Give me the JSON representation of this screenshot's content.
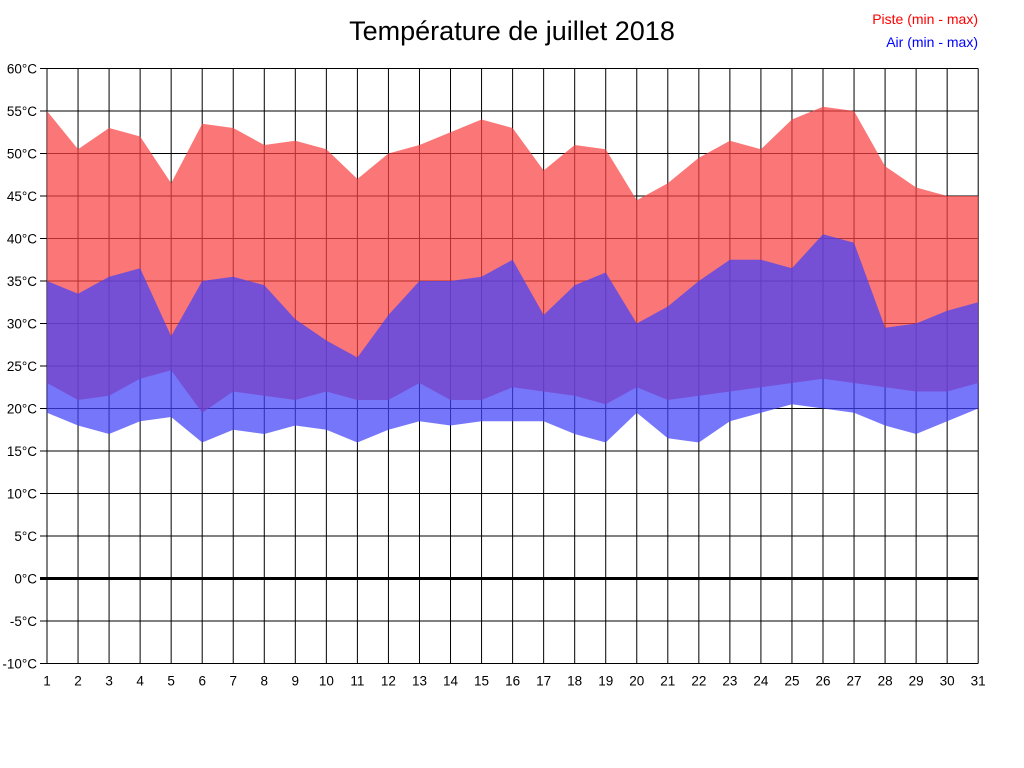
{
  "title": "Température de juillet 2018",
  "legend": [
    {
      "label": "Piste (min - max)",
      "color": "#ff0000"
    },
    {
      "label": "Air (min - max)",
      "color": "#0000ff"
    }
  ],
  "chart_data": {
    "type": "area",
    "title": "Température de juillet 2018",
    "xlabel": "",
    "ylabel": "",
    "x": [
      1,
      2,
      3,
      4,
      5,
      6,
      7,
      8,
      9,
      10,
      11,
      12,
      13,
      14,
      15,
      16,
      17,
      18,
      19,
      20,
      21,
      22,
      23,
      24,
      25,
      26,
      27,
      28,
      29,
      30,
      31
    ],
    "x_labels": [
      "1",
      "2",
      "3",
      "4",
      "5",
      "6",
      "7",
      "8",
      "9",
      "10",
      "11",
      "12",
      "13",
      "14",
      "15",
      "16",
      "17",
      "18",
      "19",
      "20",
      "21",
      "22",
      "23",
      "24",
      "25",
      "26",
      "27",
      "28",
      "29",
      "30",
      "31"
    ],
    "ylim": [
      -10,
      60
    ],
    "y_ticks": [
      {
        "value": 60,
        "label": "60°C"
      },
      {
        "value": 55,
        "label": "55°C"
      },
      {
        "value": 50,
        "label": "50°C"
      },
      {
        "value": 45,
        "label": "45°C"
      },
      {
        "value": 40,
        "label": "40°C"
      },
      {
        "value": 35,
        "label": "35°C"
      },
      {
        "value": 30,
        "label": "30°C"
      },
      {
        "value": 25,
        "label": "25°C"
      },
      {
        "value": 20,
        "label": "20°C"
      },
      {
        "value": 15,
        "label": "15°C"
      },
      {
        "value": 10,
        "label": "10°C"
      },
      {
        "value": 5,
        "label": "5°C"
      },
      {
        "value": 0,
        "label": "0°C"
      },
      {
        "value": -5,
        "label": "-5°C"
      },
      {
        "value": -10,
        "label": "-10°C"
      }
    ],
    "grid": true,
    "zero_line": {
      "value": 0,
      "color": "#000000",
      "width": 3
    },
    "legend_position": "top-right",
    "series": [
      {
        "name": "Piste (min - max)",
        "legend_color": "#ff0000",
        "fill": "rgba(250,65,65,0.72)",
        "max": [
          55,
          50.5,
          53,
          52,
          46.5,
          53.5,
          53,
          51,
          51.5,
          50.5,
          47,
          50,
          51,
          52.5,
          54,
          53,
          48,
          51,
          50.5,
          44.5,
          46.5,
          49.5,
          51.5,
          50.5,
          54,
          55.5,
          55,
          48.5,
          46,
          45,
          45
        ],
        "min": [
          23,
          21,
          21.5,
          23.5,
          24.5,
          19.5,
          22,
          21.5,
          21,
          22,
          21,
          21,
          23,
          21,
          21,
          22.5,
          22,
          21.5,
          20.5,
          22.5,
          21,
          21.5,
          22,
          22.5,
          23,
          23.5,
          23,
          22.5,
          22,
          22,
          23
        ]
      },
      {
        "name": "Air (min - max)",
        "legend_color": "#0000ff",
        "fill": "rgba(65,65,250,0.72)",
        "max": [
          35,
          33.5,
          35.5,
          36.5,
          28.5,
          35,
          35.5,
          34.5,
          30.5,
          28,
          26,
          31,
          35,
          35,
          35.5,
          37.5,
          31,
          34.5,
          36,
          30,
          32,
          35,
          37.5,
          37.5,
          36.5,
          40.5,
          39.5,
          29.5,
          30,
          31.5,
          32.5
        ],
        "min": [
          19.5,
          18,
          17,
          18.5,
          19,
          16,
          17.5,
          17,
          18,
          17.5,
          16,
          17.5,
          18.5,
          18,
          18.5,
          18.5,
          18.5,
          17,
          16,
          19.5,
          16.5,
          16,
          18.5,
          19.5,
          20.5,
          20,
          19.5,
          18,
          17,
          18.5,
          20
        ]
      }
    ],
    "grid_color": "#000000",
    "plot_border": true
  }
}
